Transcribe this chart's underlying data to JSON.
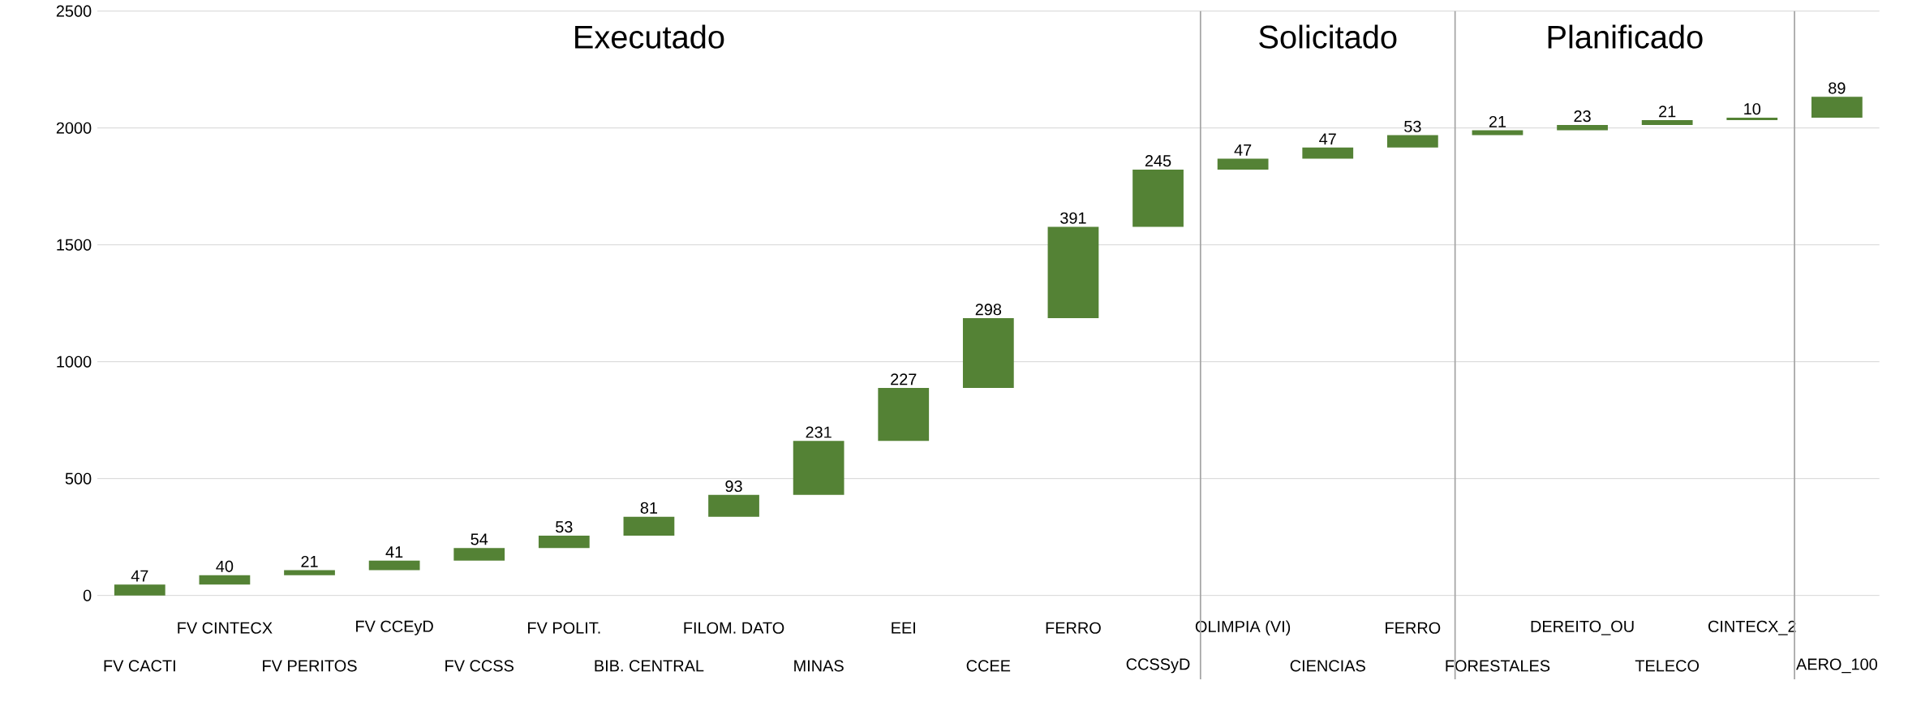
{
  "chart_data": {
    "type": "bar",
    "categories": [
      "FV CACTI",
      "FV CINTECX",
      "FV PERITOS",
      "FV CCEyD",
      "FV CCSS",
      "FV POLIT.",
      "BIB. CENTRAL",
      "FILOM. DATO",
      "MINAS",
      "EEI",
      "CCEE",
      "FERRO",
      "CCSSyD",
      "OLIMPIA (VI)",
      "CIENCIAS",
      "FERRO",
      "FORESTALES",
      "DEREITO_OU",
      "TELECO",
      "CINTECX_2",
      "AERO_100"
    ],
    "values": [
      47,
      40,
      21,
      41,
      54,
      53,
      81,
      93,
      231,
      227,
      298,
      391,
      245,
      47,
      47,
      53,
      21,
      23,
      21,
      10,
      89
    ],
    "base": [
      0,
      47,
      87,
      108,
      149,
      203,
      256,
      337,
      430,
      661,
      888,
      1186,
      1577,
      1822,
      1869,
      1916,
      1969,
      1990,
      2013,
      2034,
      2044
    ],
    "color": "#548235",
    "data_labels": true,
    "grid": "y",
    "ylim": [
      0,
      2500
    ],
    "yticks": [
      0,
      500,
      1000,
      1500,
      2000,
      2500
    ],
    "annotations": [
      "Executado",
      "Solicitado",
      "Planificado"
    ]
  }
}
